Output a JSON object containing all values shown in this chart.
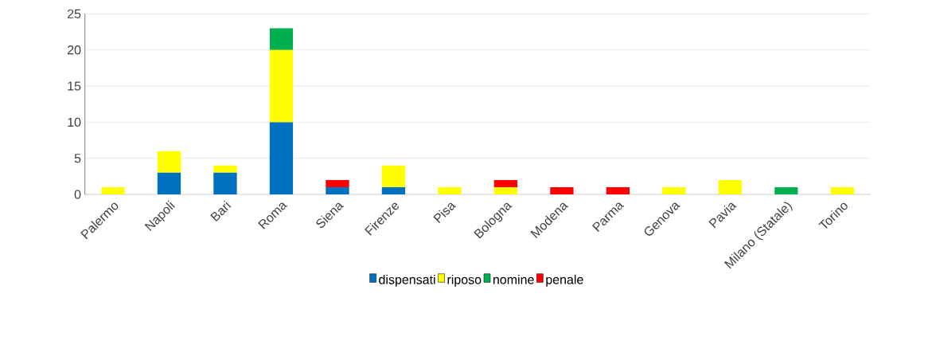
{
  "chart_data": {
    "type": "bar",
    "stacked": true,
    "categories": [
      "Palermo",
      "Napoli",
      "Bari",
      "Roma",
      "Siena",
      "Firenze",
      "Pisa",
      "Bologna",
      "Modena",
      "Parma",
      "Genova",
      "Pavia",
      "Milano (Statale)",
      "Torino"
    ],
    "series": [
      {
        "name": "dispensati",
        "color": "#0070c0",
        "values": [
          null,
          3,
          3,
          10,
          1,
          1,
          null,
          null,
          null,
          null,
          null,
          null,
          null,
          null
        ]
      },
      {
        "name": "riposo",
        "color": "#ffff00",
        "values": [
          1,
          3,
          1,
          10,
          null,
          3,
          1,
          1,
          null,
          null,
          1,
          2,
          null,
          1
        ]
      },
      {
        "name": "nomine",
        "color": "#00b050",
        "values": [
          null,
          null,
          null,
          3,
          null,
          null,
          null,
          null,
          null,
          null,
          null,
          null,
          1,
          null
        ]
      },
      {
        "name": "penale",
        "color": "#ff0000",
        "values": [
          null,
          null,
          null,
          null,
          1,
          null,
          null,
          1,
          1,
          1,
          null,
          null,
          null,
          null
        ]
      }
    ],
    "ylim": [
      0,
      25
    ],
    "yticks": [
      0,
      5,
      10,
      15,
      20,
      25
    ],
    "grid": "y",
    "legend": "bottom"
  }
}
